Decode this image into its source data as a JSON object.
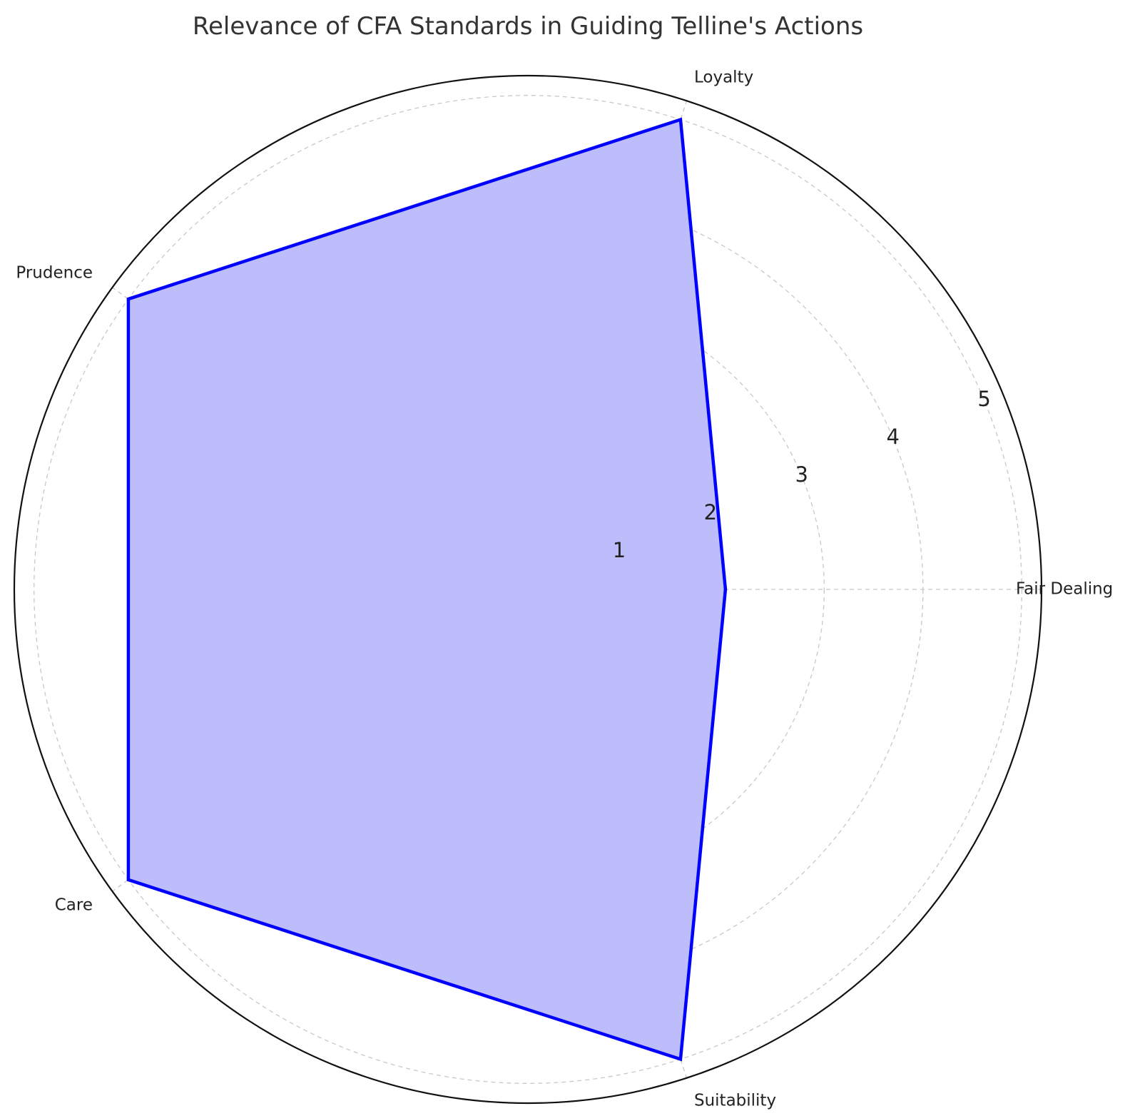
{
  "chart_data": {
    "type": "radar",
    "title": "Relevance of CFA Standards in Guiding Telline's Actions",
    "categories": [
      "Fair Dealing",
      "Loyalty",
      "Prudence",
      "Care",
      "Suitability"
    ],
    "series": [
      {
        "values": [
          2,
          5,
          5,
          5,
          5
        ]
      }
    ],
    "r_ticks": [
      "1",
      "2",
      "3",
      "4",
      "5"
    ],
    "rlim": [
      0,
      5.2
    ],
    "grid": true,
    "colors": {
      "line": "#0000ff",
      "fill": "#bdbdfc",
      "grid": "#c8c8c8",
      "frame": "#111111",
      "title": "#333333"
    }
  }
}
